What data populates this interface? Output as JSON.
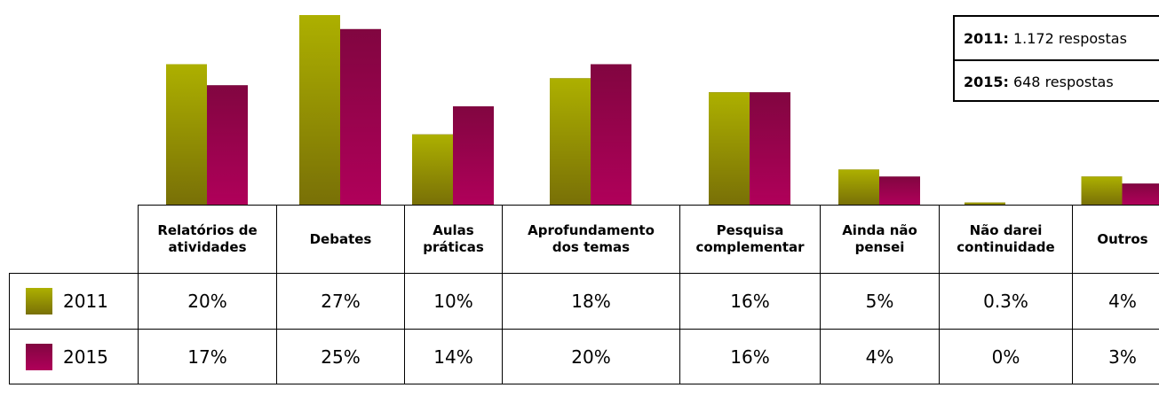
{
  "chart_data": {
    "type": "bar",
    "categories": [
      "Relatórios de\natividades",
      "Debates",
      "Aulas\npráticas",
      "Aprofundamento\ndos temas",
      "Pesquisa\ncomplementar",
      "Ainda não\npensei",
      "Não darei\ncontinuidade",
      "Outros"
    ],
    "series": [
      {
        "name": "2011",
        "color": "#adb000",
        "values": [
          20,
          27,
          10,
          18,
          16,
          5,
          0.3,
          4
        ],
        "value_labels": [
          "20%",
          "27%",
          "10%",
          "18%",
          "16%",
          "5%",
          "0.3%",
          "4%"
        ]
      },
      {
        "name": "2015",
        "color": "#b0005a",
        "values": [
          17,
          25,
          14,
          20,
          16,
          4,
          0,
          3
        ],
        "value_labels": [
          "17%",
          "25%",
          "14%",
          "20%",
          "16%",
          "4%",
          "0%",
          "3%"
        ]
      }
    ],
    "notes": [
      {
        "label": "2011:",
        "text": "1.172 respostas"
      },
      {
        "label": "2015:",
        "text": "648 respostas"
      }
    ]
  }
}
